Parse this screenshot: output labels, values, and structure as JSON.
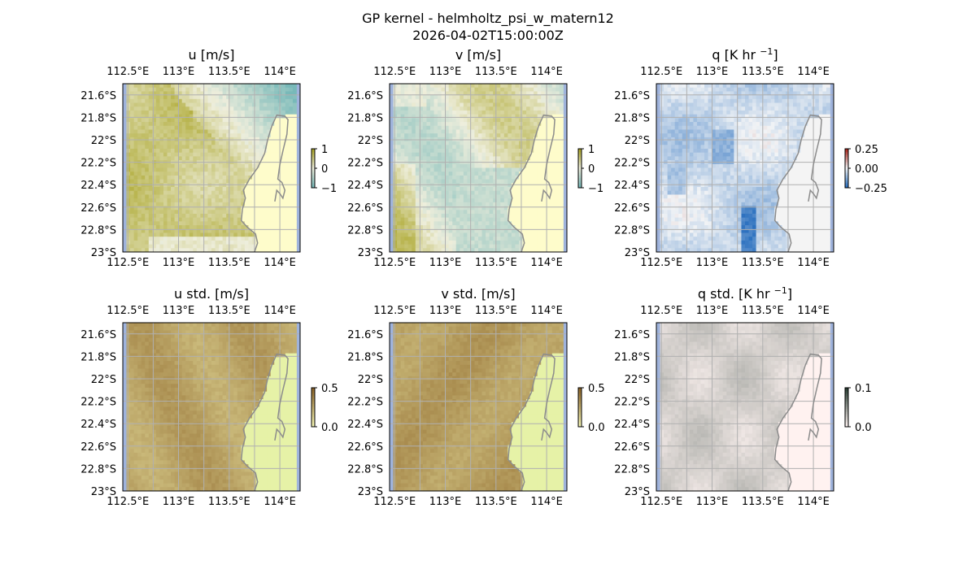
{
  "figure": {
    "title_line1": "GP kernel - helmholtz_psi_w_matern12",
    "title_line2": "2026-04-02T15:00:00Z"
  },
  "chart_data": [
    {
      "type": "heatmap",
      "title": "u [m/s]",
      "lon_ticks": [
        "112.5°E",
        "113°E",
        "113.5°E",
        "114°E"
      ],
      "lat_ticks": [
        "21.6°S",
        "21.8°S",
        "22°S",
        "22.2°S",
        "22.4°S",
        "22.6°S",
        "22.8°S",
        "23°S"
      ],
      "colorbar": {
        "ticks": [
          "1",
          "0",
          "−1"
        ],
        "range": [
          -1,
          1
        ]
      },
      "palette": "diverging-olive-teal",
      "field": "u",
      "map_extent": {
        "lon": [
          112.45,
          114.2
        ],
        "lat": [
          -23.0,
          -21.5
        ]
      }
    },
    {
      "type": "heatmap",
      "title": "v [m/s]",
      "lon_ticks": [
        "112.5°E",
        "113°E",
        "113.5°E",
        "114°E"
      ],
      "lat_ticks": [
        "21.6°S",
        "21.8°S",
        "22°S",
        "22.2°S",
        "22.4°S",
        "22.6°S",
        "22.8°S",
        "23°S"
      ],
      "colorbar": {
        "ticks": [
          "1",
          "0",
          "−1"
        ],
        "range": [
          -1,
          1
        ]
      },
      "palette": "diverging-olive-teal",
      "field": "v",
      "map_extent": {
        "lon": [
          112.45,
          114.2
        ],
        "lat": [
          -23.0,
          -21.5
        ]
      }
    },
    {
      "type": "heatmap",
      "title": "q [K hr −1]",
      "title_base": "q [K hr ",
      "title_sup": "−1",
      "title_end": "]",
      "lon_ticks": [
        "112.5°E",
        "113°E",
        "113.5°E",
        "114°E"
      ],
      "lat_ticks": [
        "21.6°S",
        "21.8°S",
        "22°S",
        "22.2°S",
        "22.4°S",
        "22.6°S",
        "22.8°S",
        "23°S"
      ],
      "colorbar": {
        "ticks": [
          "0.25",
          "0.00",
          "−0.25"
        ],
        "range": [
          -0.4,
          0.4
        ]
      },
      "palette": "diverging-red-blue",
      "field": "q",
      "map_extent": {
        "lon": [
          112.45,
          114.2
        ],
        "lat": [
          -23.0,
          -21.5
        ]
      }
    },
    {
      "type": "heatmap",
      "title": "u std. [m/s]",
      "lon_ticks": [
        "112.5°E",
        "113°E",
        "113.5°E",
        "114°E"
      ],
      "lat_ticks": [
        "21.6°S",
        "21.8°S",
        "22°S",
        "22.2°S",
        "22.4°S",
        "22.6°S",
        "22.8°S",
        "23°S"
      ],
      "colorbar": {
        "ticks": [
          "0.5",
          "0.0"
        ],
        "range": [
          0,
          0.5
        ]
      },
      "palette": "sequential-yellow",
      "field": "ustd",
      "map_extent": {
        "lon": [
          112.45,
          114.2
        ],
        "lat": [
          -23.0,
          -21.5
        ]
      }
    },
    {
      "type": "heatmap",
      "title": "v std. [m/s]",
      "lon_ticks": [
        "112.5°E",
        "113°E",
        "113.5°E",
        "114°E"
      ],
      "lat_ticks": [
        "21.6°S",
        "21.8°S",
        "22°S",
        "22.2°S",
        "22.4°S",
        "22.6°S",
        "22.8°S",
        "23°S"
      ],
      "colorbar": {
        "ticks": [
          "0.5",
          "0.0"
        ],
        "range": [
          0,
          0.5
        ]
      },
      "palette": "sequential-yellow",
      "field": "vstd",
      "map_extent": {
        "lon": [
          112.45,
          114.2
        ],
        "lat": [
          -23.0,
          -21.5
        ]
      }
    },
    {
      "type": "heatmap",
      "title": "q std. [K hr −1]",
      "title_base": "q std. [K hr ",
      "title_sup": "−1",
      "title_end": "]",
      "lon_ticks": [
        "112.5°E",
        "113°E",
        "113.5°E",
        "114°E"
      ],
      "lat_ticks": [
        "21.6°S",
        "21.8°S",
        "22°S",
        "22.2°S",
        "22.4°S",
        "22.6°S",
        "22.8°S",
        "23°S"
      ],
      "colorbar": {
        "ticks": [
          "0.1",
          "0.0"
        ],
        "range": [
          0,
          0.1
        ]
      },
      "palette": "sequential-pale",
      "field": "qstd",
      "map_extent": {
        "lon": [
          112.45,
          114.2
        ],
        "lat": [
          -23.0,
          -21.5
        ]
      }
    }
  ],
  "colors": {
    "ocean_edge": "#9fb3dc",
    "land_u": "#fefccb",
    "land_std": "#e6f2a7",
    "land_q": "#f4f4f4",
    "land_qstd": "#fff2f0",
    "coast": "#8c8c8c",
    "grid": "#b0b0b0"
  }
}
